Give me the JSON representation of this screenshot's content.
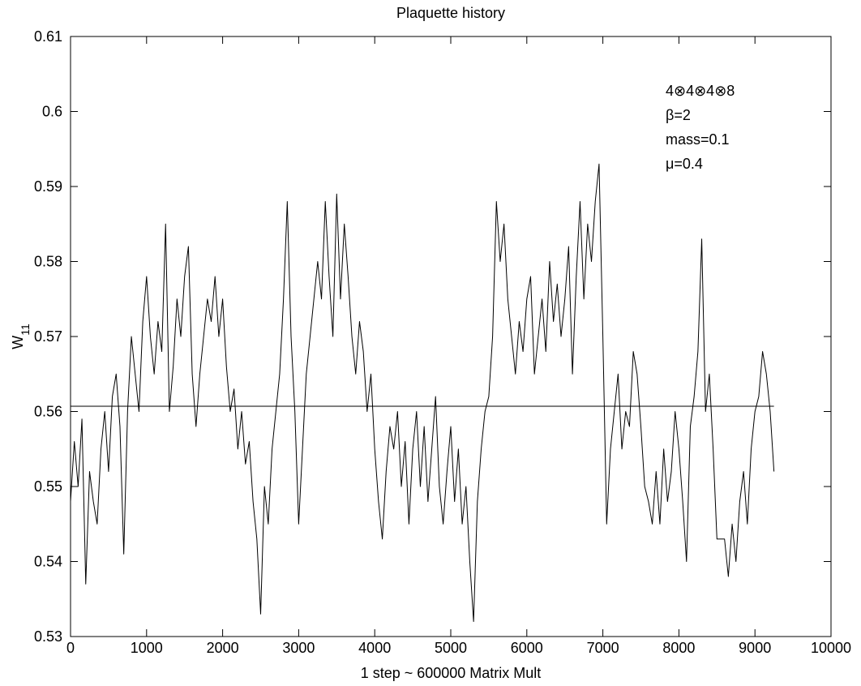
{
  "chart_data": {
    "type": "line",
    "title": "Plaquette history",
    "xlabel": "1 step ~ 600000 Matrix Mult",
    "ylabel": {
      "text": "W",
      "subscript": "11"
    },
    "annotations": [
      "4⊗4⊗4⊗8",
      "β=2",
      "mass=0.1",
      "μ=0.4"
    ],
    "xlim": [
      0,
      10000
    ],
    "ylim": [
      0.53,
      0.61
    ],
    "xticks": [
      0,
      1000,
      2000,
      3000,
      4000,
      5000,
      6000,
      7000,
      8000,
      9000,
      10000
    ],
    "yticks": [
      0.53,
      0.54,
      0.55,
      0.56,
      0.57,
      0.58,
      0.59,
      0.6,
      0.61
    ],
    "hline": 0.5607,
    "x": [
      0,
      50,
      100,
      150,
      200,
      250,
      300,
      350,
      400,
      450,
      500,
      550,
      600,
      650,
      700,
      750,
      800,
      850,
      900,
      950,
      1000,
      1050,
      1100,
      1150,
      1200,
      1250,
      1300,
      1350,
      1400,
      1450,
      1500,
      1550,
      1600,
      1650,
      1700,
      1750,
      1800,
      1850,
      1900,
      1950,
      2000,
      2050,
      2100,
      2150,
      2200,
      2250,
      2300,
      2350,
      2400,
      2450,
      2500,
      2550,
      2600,
      2650,
      2700,
      2750,
      2800,
      2850,
      2900,
      2950,
      3000,
      3050,
      3100,
      3150,
      3200,
      3250,
      3300,
      3350,
      3400,
      3450,
      3500,
      3550,
      3600,
      3650,
      3700,
      3750,
      3800,
      3850,
      3900,
      3950,
      4000,
      4050,
      4100,
      4150,
      4200,
      4250,
      4300,
      4350,
      4400,
      4450,
      4500,
      4550,
      4600,
      4650,
      4700,
      4750,
      4800,
      4850,
      4900,
      4950,
      5000,
      5050,
      5100,
      5150,
      5200,
      5250,
      5300,
      5350,
      5400,
      5450,
      5500,
      5550,
      5600,
      5650,
      5700,
      5750,
      5800,
      5850,
      5900,
      5950,
      6000,
      6050,
      6100,
      6150,
      6200,
      6250,
      6300,
      6350,
      6400,
      6450,
      6500,
      6550,
      6600,
      6650,
      6700,
      6750,
      6800,
      6850,
      6900,
      6950,
      7000,
      7050,
      7100,
      7150,
      7200,
      7250,
      7300,
      7350,
      7400,
      7450,
      7500,
      7550,
      7600,
      7650,
      7700,
      7750,
      7800,
      7850,
      7900,
      7950,
      8000,
      8050,
      8100,
      8150,
      8200,
      8250,
      8300,
      8350,
      8400,
      8450,
      8500,
      8550,
      8600,
      8650,
      8700,
      8750,
      8800,
      8850,
      8900,
      8950,
      9000,
      9050,
      9100,
      9150,
      9200,
      9250
    ],
    "series": [
      {
        "color": "#000000",
        "values": [
          0.548,
          0.556,
          0.55,
          0.559,
          0.537,
          0.552,
          0.548,
          0.545,
          0.555,
          0.56,
          0.552,
          0.562,
          0.565,
          0.558,
          0.541,
          0.56,
          0.57,
          0.565,
          0.56,
          0.572,
          0.578,
          0.57,
          0.565,
          0.572,
          0.568,
          0.585,
          0.56,
          0.566,
          0.575,
          0.57,
          0.578,
          0.582,
          0.565,
          0.558,
          0.565,
          0.57,
          0.575,
          0.572,
          0.578,
          0.57,
          0.575,
          0.566,
          0.56,
          0.563,
          0.555,
          0.56,
          0.553,
          0.556,
          0.548,
          0.543,
          0.533,
          0.55,
          0.545,
          0.555,
          0.56,
          0.565,
          0.575,
          0.588,
          0.57,
          0.56,
          0.545,
          0.555,
          0.565,
          0.57,
          0.575,
          0.58,
          0.575,
          0.588,
          0.578,
          0.57,
          0.589,
          0.575,
          0.585,
          0.578,
          0.57,
          0.565,
          0.572,
          0.568,
          0.56,
          0.565,
          0.555,
          0.548,
          0.543,
          0.552,
          0.558,
          0.555,
          0.56,
          0.55,
          0.556,
          0.545,
          0.555,
          0.56,
          0.55,
          0.558,
          0.548,
          0.555,
          0.562,
          0.55,
          0.545,
          0.552,
          0.558,
          0.548,
          0.555,
          0.545,
          0.55,
          0.54,
          0.532,
          0.548,
          0.555,
          0.56,
          0.562,
          0.57,
          0.588,
          0.58,
          0.585,
          0.575,
          0.57,
          0.565,
          0.572,
          0.568,
          0.575,
          0.578,
          0.565,
          0.57,
          0.575,
          0.568,
          0.58,
          0.572,
          0.577,
          0.57,
          0.575,
          0.582,
          0.565,
          0.578,
          0.588,
          0.575,
          0.585,
          0.58,
          0.588,
          0.593,
          0.57,
          0.545,
          0.555,
          0.56,
          0.565,
          0.555,
          0.56,
          0.558,
          0.568,
          0.565,
          0.558,
          0.55,
          0.548,
          0.545,
          0.552,
          0.545,
          0.555,
          0.548,
          0.552,
          0.56,
          0.555,
          0.548,
          0.54,
          0.558,
          0.562,
          0.568,
          0.583,
          0.56,
          0.565,
          0.555,
          0.543,
          0.543,
          0.543,
          0.538,
          0.545,
          0.54,
          0.548,
          0.552,
          0.545,
          0.555,
          0.56,
          0.562,
          0.568,
          0.565,
          0.56,
          0.552
        ]
      }
    ]
  }
}
